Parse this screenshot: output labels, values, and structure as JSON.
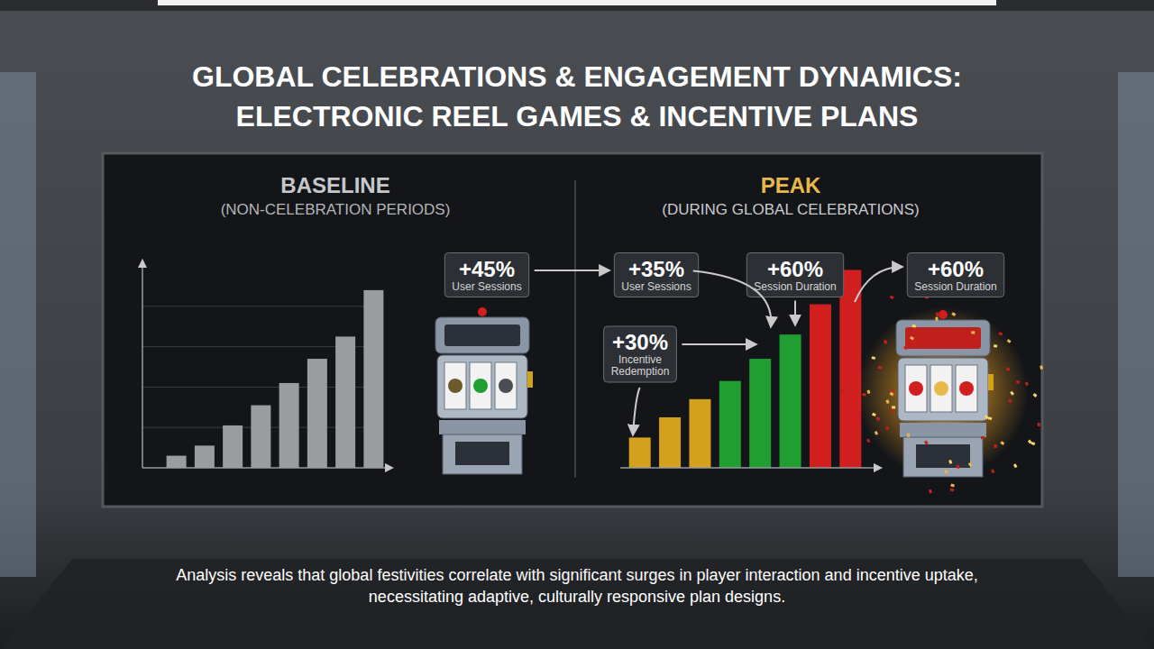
{
  "header": {
    "title": [
      "GLOBAL CELEBRATIONS & ENGAGEMENT DYNAMICS:",
      "ELECTRONIC REEL GAMES & INCENTIVE PLANS"
    ]
  },
  "chart_data": [
    {
      "type": "bar",
      "title": "BASELINE",
      "subtitle": "(NON-CELEBRATION PERIODS)",
      "categories": [
        null,
        null,
        null,
        null,
        null,
        null,
        null,
        null
      ],
      "values": [
        6,
        11,
        21,
        31,
        42,
        54,
        65,
        88
      ],
      "color": "#9a9c9f",
      "ylim": [
        0,
        100
      ],
      "yticks": [
        20,
        40,
        60,
        80
      ],
      "grid": true,
      "tick_labels": false
    },
    {
      "type": "bar",
      "title": "PEAK",
      "subtitle": "(DURING GLOBAL CELEBRATIONS)",
      "categories": [
        null,
        null,
        null,
        null,
        null,
        null,
        null,
        null
      ],
      "values": [
        15,
        25,
        34,
        43,
        54,
        66,
        81,
        98
      ],
      "colors": [
        "#d4a11c",
        "#d4a11c",
        "#d4a11c",
        "#1f9e32",
        "#1f9e32",
        "#1f9e32",
        "#d11f1f",
        "#d11f1f"
      ],
      "ylim": [
        0,
        100
      ],
      "grid": false,
      "tick_labels": false
    }
  ],
  "callouts": [
    {
      "label": "+45%",
      "text": "User Sessions"
    },
    {
      "label": "+35%",
      "text": "User Sessions"
    },
    {
      "label": "+60%",
      "text": "Session Duration"
    },
    {
      "label": "+60%",
      "text": "Session Duration"
    },
    {
      "label": "+30%",
      "text": "Incentive Redemption"
    }
  ],
  "caption": "Analysis reveals that global festivities correlate with significant surges in player interaction and incentive uptake, necessitating adaptive, culturally responsive plan designs."
}
